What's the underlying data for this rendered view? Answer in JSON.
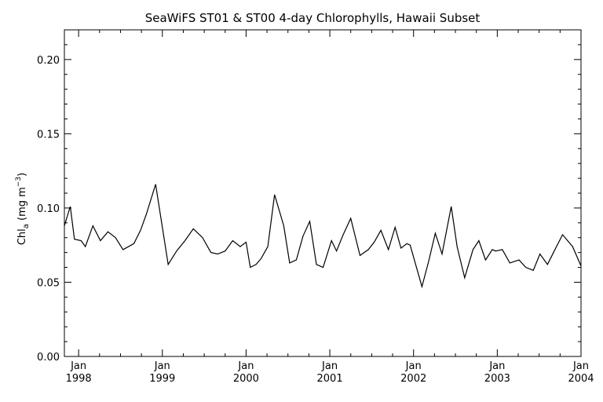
{
  "chart_data": {
    "type": "line",
    "title": "SeaWiFS ST01 & ST00 4-day Chlorophylls, Hawaii Subset",
    "ylabel": "Chla (mg m-3)",
    "ylabel_parts": {
      "base": "Chl",
      "sub": "a",
      "unit_open": " (mg m",
      "sup": "−3",
      "unit_close": ")"
    },
    "xlabel": "",
    "ylim": [
      0.0,
      0.22
    ],
    "xlim": [
      1997.83,
      2004.0
    ],
    "yticks": [
      {
        "value": 0.0,
        "label": "0.00"
      },
      {
        "value": 0.05,
        "label": "0.05"
      },
      {
        "value": 0.1,
        "label": "0.10"
      },
      {
        "value": 0.15,
        "label": "0.15"
      },
      {
        "value": 0.2,
        "label": "0.20"
      }
    ],
    "xticks": [
      {
        "value": 1998,
        "month": "Jan",
        "year": "1998"
      },
      {
        "value": 1999,
        "month": "Jan",
        "year": "1999"
      },
      {
        "value": 2000,
        "month": "Jan",
        "year": "2000"
      },
      {
        "value": 2001,
        "month": "Jan",
        "year": "2001"
      },
      {
        "value": 2002,
        "month": "Jan",
        "year": "2002"
      },
      {
        "value": 2003,
        "month": "Jan",
        "year": "2003"
      },
      {
        "value": 2004,
        "month": "Jan",
        "year": "2004"
      }
    ],
    "grid": false,
    "color": "#000000",
    "series": [
      {
        "x": [
          1997.83,
          1997.9,
          1997.95,
          1998.03,
          1998.08,
          1998.17,
          1998.26,
          1998.35,
          1998.44,
          1998.53,
          1998.66,
          1998.74,
          1998.81,
          1998.92,
          1999.07,
          1999.17,
          1999.27,
          1999.37,
          1999.48,
          1999.58,
          1999.66,
          1999.75,
          1999.84,
          1999.93,
          2000.0,
          2000.05,
          2000.12,
          2000.18,
          2000.26,
          2000.34,
          2000.45,
          2000.52,
          2000.6,
          2000.68,
          2000.76,
          2000.84,
          2000.92,
          2001.02,
          2001.08,
          2001.16,
          2001.25,
          2001.36,
          2001.46,
          2001.53,
          2001.61,
          2001.7,
          2001.78,
          2001.85,
          2001.92,
          2001.96,
          2002.03,
          2002.1,
          2002.18,
          2002.26,
          2002.34,
          2002.45,
          2002.52,
          2002.61,
          2002.71,
          2002.78,
          2002.86,
          2002.94,
          2002.98,
          2003.06,
          2003.15,
          2003.26,
          2003.34,
          2003.43,
          2003.51,
          2003.6,
          2003.68,
          2003.78,
          2003.9,
          2004.0
        ],
        "values": [
          0.088,
          0.101,
          0.079,
          0.078,
          0.074,
          0.088,
          0.078,
          0.084,
          0.08,
          0.072,
          0.076,
          0.085,
          0.096,
          0.116,
          0.062,
          0.071,
          0.078,
          0.086,
          0.08,
          0.07,
          0.069,
          0.071,
          0.078,
          0.074,
          0.077,
          0.06,
          0.062,
          0.066,
          0.074,
          0.109,
          0.088,
          0.063,
          0.065,
          0.081,
          0.091,
          0.062,
          0.06,
          0.078,
          0.071,
          0.082,
          0.093,
          0.068,
          0.072,
          0.077,
          0.085,
          0.072,
          0.087,
          0.073,
          0.076,
          0.075,
          0.061,
          0.047,
          0.064,
          0.083,
          0.069,
          0.101,
          0.074,
          0.053,
          0.072,
          0.078,
          0.065,
          0.072,
          0.071,
          0.072,
          0.063,
          0.065,
          0.06,
          0.058,
          0.069,
          0.062,
          0.071,
          0.082,
          0.074,
          0.061
        ]
      }
    ]
  }
}
